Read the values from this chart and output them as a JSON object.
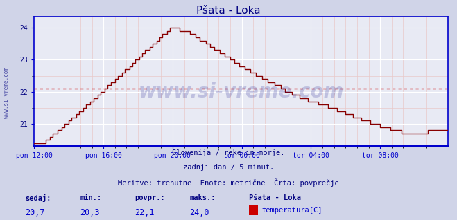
{
  "title": "Pšata - Loka",
  "title_color": "#000080",
  "bg_color": "#d0d4e8",
  "plot_bg_color": "#e8eaf4",
  "grid_major_color": "#ffffff",
  "grid_minor_color": "#e8c8c8",
  "line_color": "#880000",
  "avg_line_color": "#cc0000",
  "avg_value": 22.1,
  "ylim_min": 20.3,
  "ylim_max": 24.35,
  "yticks": [
    21,
    22,
    23,
    24
  ],
  "xlabel_color": "#000080",
  "ylabel_color": "#000080",
  "watermark_text": "www.si-vreme.com",
  "watermark_color": "#000080",
  "watermark_alpha": 0.18,
  "subtitle1": "Slovenija / reke in morje.",
  "subtitle2": "zadnji dan / 5 minut.",
  "subtitle3": "Meritve: trenutne  Enote: metrične  Črta: povprečje",
  "subtitle_color": "#000080",
  "stat_labels": [
    "sedaj:",
    "min.:",
    "povpr.:",
    "maks.:"
  ],
  "stat_values": [
    "20,7",
    "20,3",
    "22,1",
    "24,0"
  ],
  "stat_label_color": "#000080",
  "stat_value_color": "#0000cc",
  "legend_title": "Pšata - Loka",
  "legend_label": "temperatura[C]",
  "legend_box_color": "#cc0000",
  "x_tick_labels": [
    "pon 12:00",
    "pon 16:00",
    "pon 20:00",
    "tor 00:00",
    "tor 04:00",
    "tor 08:00"
  ],
  "x_tick_positions": [
    0,
    48,
    96,
    144,
    192,
    240
  ],
  "n_points": 288,
  "axis_color": "#0000cc",
  "sidebar_text": "www.si-vreme.com",
  "sidebar_color": "#000080",
  "font_family": "monospace"
}
